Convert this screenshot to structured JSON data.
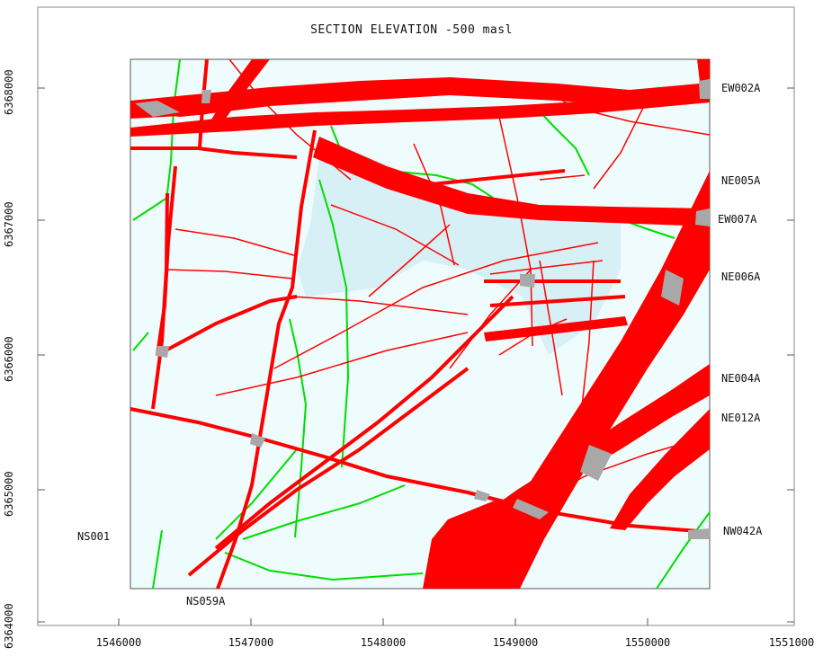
{
  "map": {
    "title": "SECTION ELEVATION -500 masl",
    "x_ticks": [
      "1546000",
      "1547000",
      "1548000",
      "1549000",
      "1550000",
      "1551000"
    ],
    "y_ticks": [
      "6368000",
      "6367000",
      "6366000",
      "6365000",
      "6364000"
    ],
    "zones_right": [
      "EW002A",
      "NE005A",
      "EW007A",
      "NE006A",
      "NE004A",
      "NE012A",
      "NW042A"
    ],
    "zones_bottom_left": [
      "NS001",
      "NS059A"
    ],
    "colors": {
      "deformation_zone": "#ff0000",
      "minor_zone": "#00dd00",
      "intersection": "#a8a8a8",
      "rock_domain": "#eefcfd",
      "shaded_domain": "#cdecf3"
    }
  }
}
